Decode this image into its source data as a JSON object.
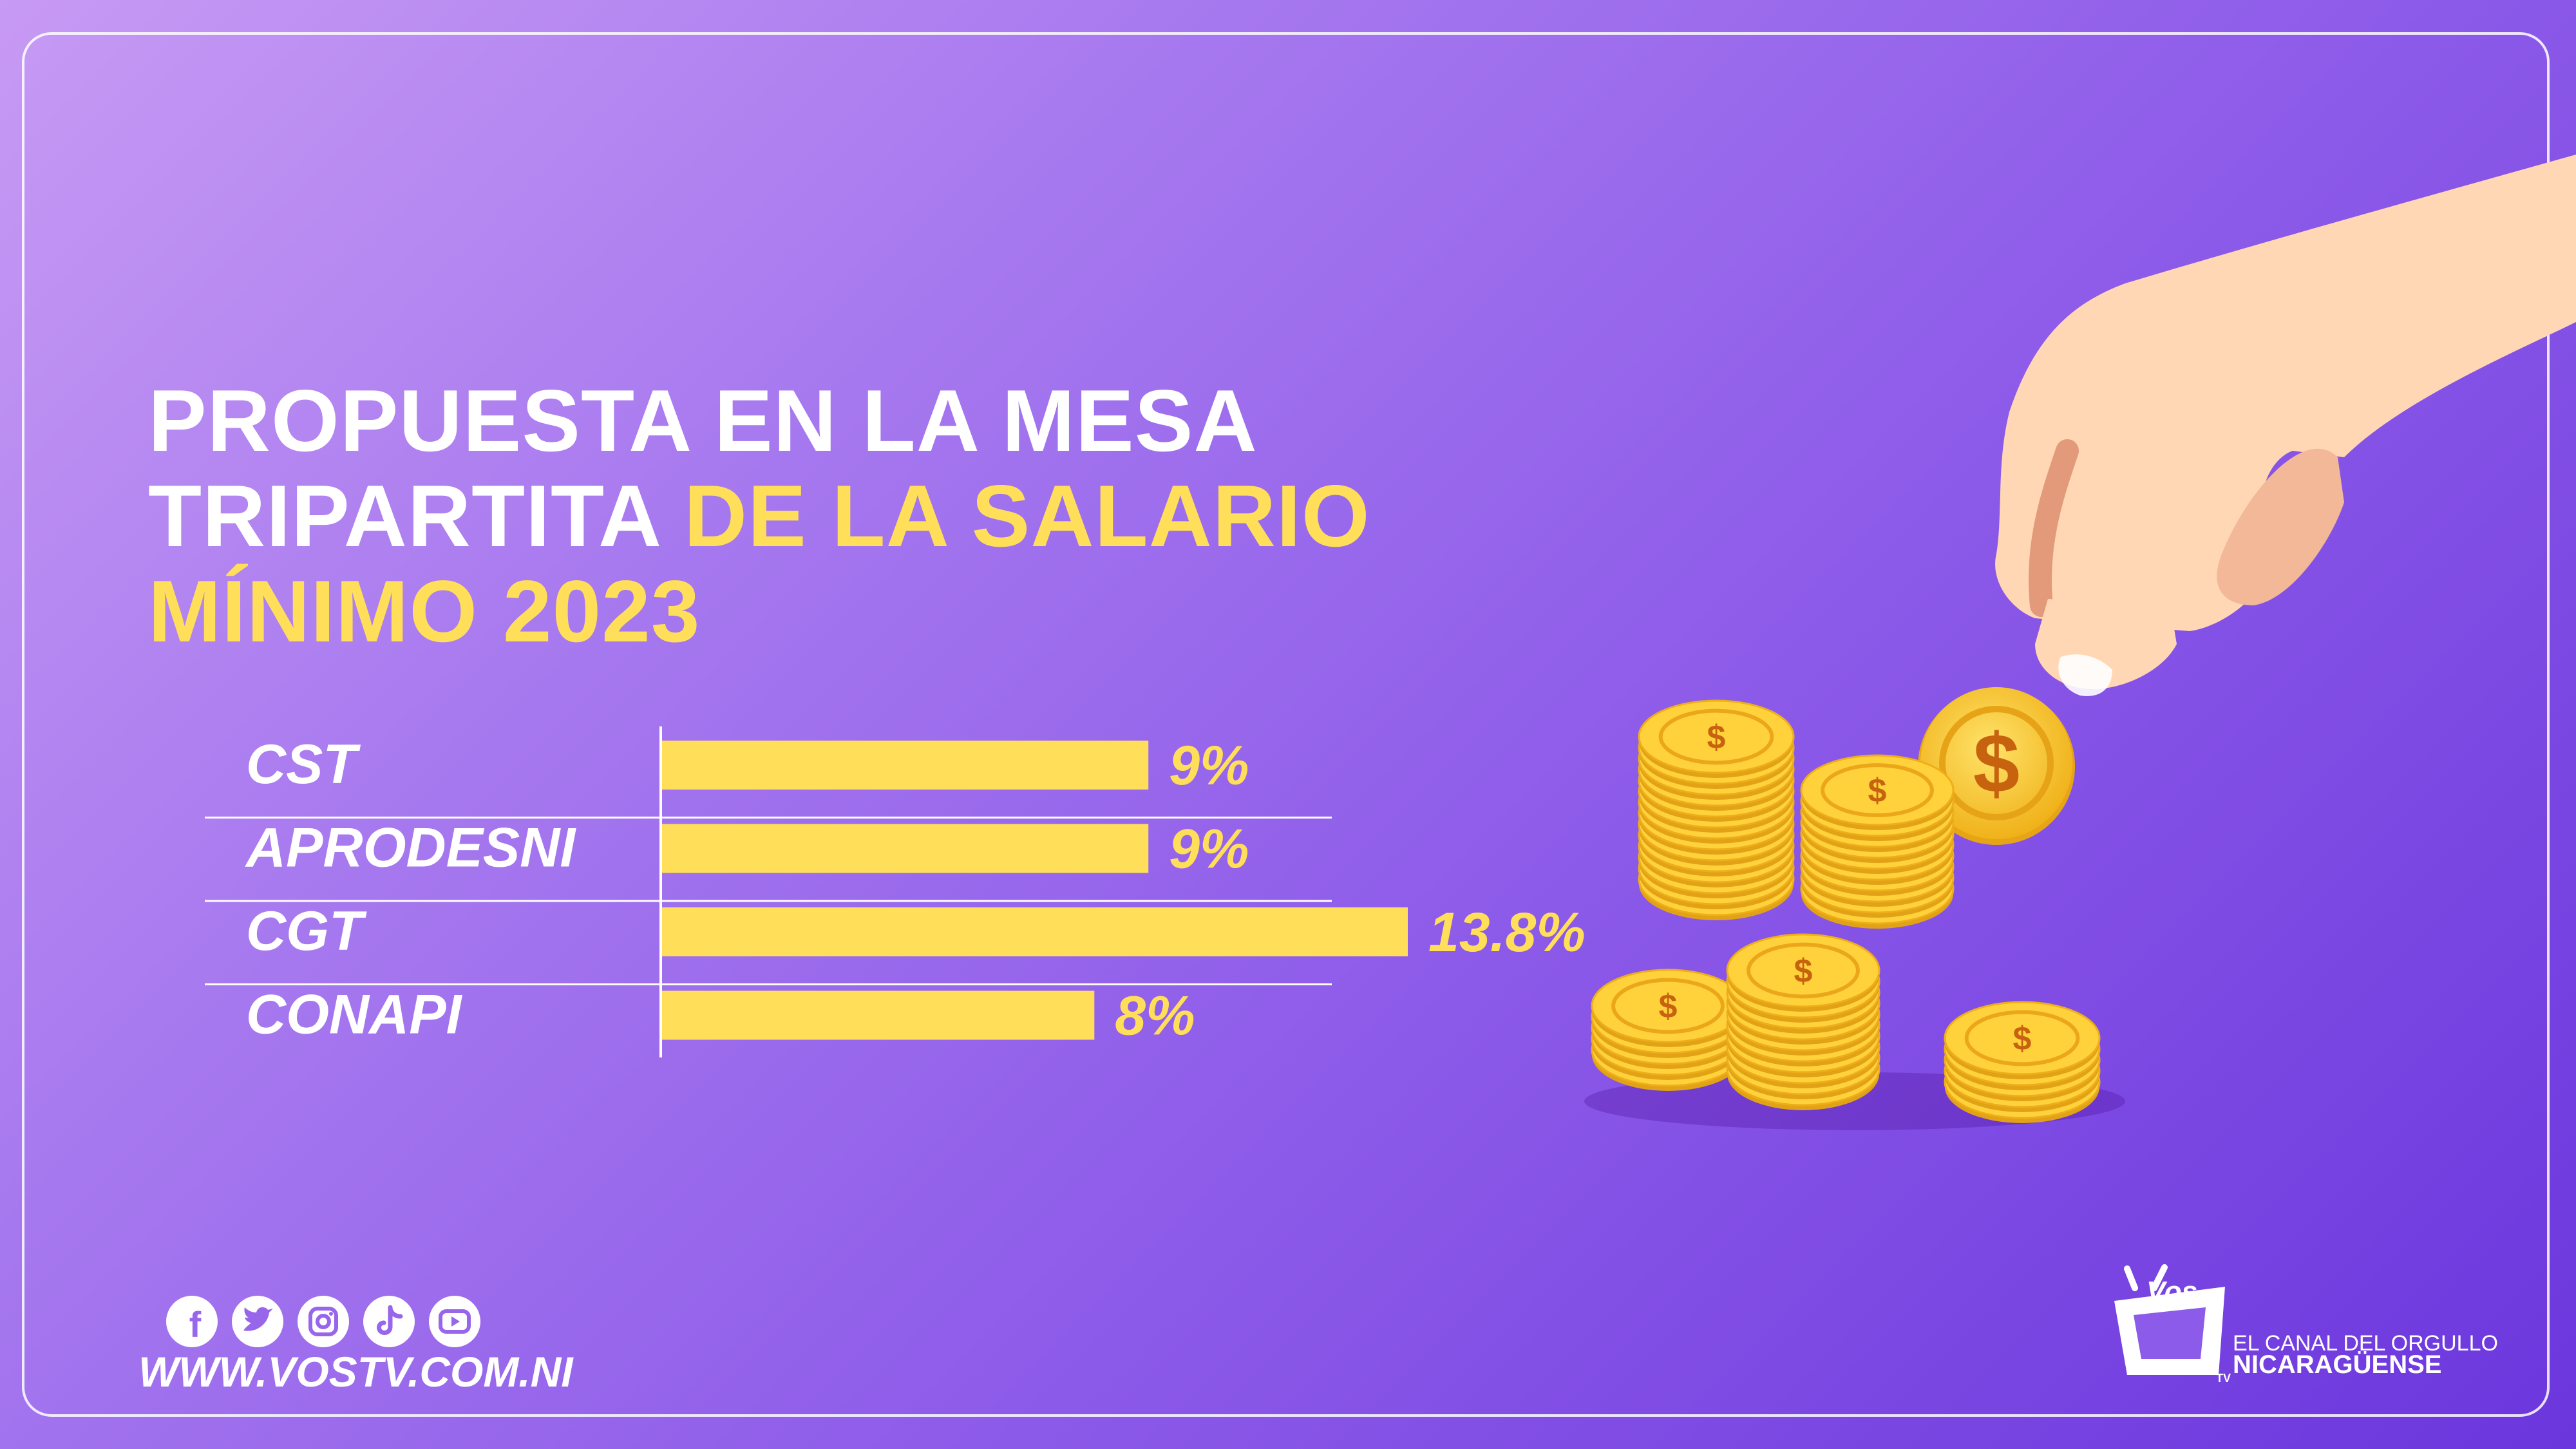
{
  "title": {
    "line1": "PROPUESTA EN LA MESA",
    "line2_plain": "TRIPARTITA ",
    "line2_highlight": "DE LA SALARIO",
    "line3_highlight": "MÍNIMO 2023"
  },
  "colors": {
    "highlight": "#ffdf59",
    "bar": "#ffdf59",
    "text": "#ffffff",
    "background_start": "#c79af4",
    "background_end": "#6b36dd"
  },
  "chart_data": {
    "type": "bar",
    "orientation": "horizontal",
    "categories": [
      "CST",
      "APRODESNI",
      "CGT",
      "CONAPI"
    ],
    "values": [
      9,
      9,
      13.8,
      8
    ],
    "value_labels": [
      "9%",
      "9%",
      "13.8%",
      "8%"
    ],
    "unit": "%",
    "title": "",
    "xlabel": "",
    "ylabel": "",
    "xlim": [
      0,
      14
    ],
    "grid": false,
    "legend": "none"
  },
  "footer": {
    "website": "WWW.VOSTV.COM.NI",
    "social_icons": [
      "facebook-icon",
      "twitter-icon",
      "instagram-icon",
      "tiktok-icon",
      "youtube-icon"
    ]
  },
  "brand": {
    "logo": "VOS TV",
    "tagline_line1": "EL CANAL DEL ORGULLO",
    "tagline_line2": "NICARAGÜENSE"
  }
}
